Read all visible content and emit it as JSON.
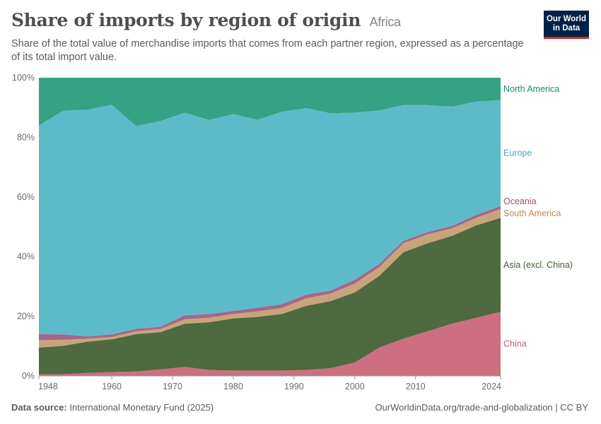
{
  "header": {
    "title": "Share of imports by region of origin",
    "entity": "Africa",
    "subtitle": "Share of the total value of merchandise imports that comes from each partner region, expressed as a percentage of its total import value.",
    "logo_line1": "Our World",
    "logo_line2": "in Data"
  },
  "footer": {
    "source_label": "Data source:",
    "source_text": "International Monetary Fund (2025)",
    "url_text": "OurWorldinData.org/trade-and-globalization | CC BY"
  },
  "colors": {
    "China": "#cd6f80",
    "Asia (excl. China)": "#4e6a40",
    "South America": "#c9a37b",
    "Oceania": "#a4678a",
    "Europe": "#5dbbc9",
    "North America": "#36a183"
  },
  "chart_data": {
    "type": "area",
    "stacked": true,
    "ylim": [
      0,
      100
    ],
    "xlim": [
      1948,
      2024
    ],
    "y_ticks": [
      "0%",
      "20%",
      "40%",
      "60%",
      "80%",
      "100%"
    ],
    "y_tick_values": [
      0,
      20,
      40,
      60,
      80,
      100
    ],
    "x_ticks": [
      "1948",
      "1960",
      "1970",
      "1980",
      "1990",
      "2000",
      "2010",
      "2024"
    ],
    "x_tick_values": [
      1948,
      1960,
      1970,
      1980,
      1990,
      2000,
      2010,
      2024
    ],
    "legend_placement": "right",
    "grid": "horizontal dotted",
    "x": [
      1948,
      1952,
      1956,
      1960,
      1964,
      1968,
      1972,
      1976,
      1980,
      1984,
      1988,
      1992,
      1996,
      2000,
      2004,
      2008,
      2012,
      2016,
      2020,
      2024
    ],
    "series": [
      {
        "name": "China",
        "values": [
          0.5,
          0.6,
          1.0,
          1.3,
          1.5,
          2.2,
          3.0,
          2.0,
          1.8,
          1.8,
          1.8,
          2.0,
          2.6,
          4.5,
          9.5,
          12.5,
          15.0,
          17.5,
          19.5,
          21.5
        ]
      },
      {
        "name": "Asia (excl. China)",
        "values": [
          9.0,
          9.5,
          10.5,
          11.0,
          12.5,
          12.5,
          14.5,
          16.0,
          17.5,
          18.0,
          19.0,
          21.5,
          22.5,
          23.5,
          24.0,
          29.0,
          29.5,
          29.5,
          31.0,
          31.5
        ]
      },
      {
        "name": "South America",
        "values": [
          2.5,
          2.0,
          1.0,
          0.8,
          1.0,
          1.0,
          1.5,
          1.5,
          1.5,
          1.8,
          2.0,
          2.5,
          2.5,
          3.0,
          3.0,
          3.0,
          3.0,
          2.5,
          2.5,
          3.0
        ]
      },
      {
        "name": "Oceania",
        "values": [
          2.0,
          1.8,
          0.8,
          0.8,
          0.8,
          0.8,
          1.3,
          1.3,
          1.0,
          1.3,
          1.3,
          1.3,
          1.0,
          1.3,
          1.0,
          0.8,
          0.8,
          0.8,
          1.0,
          1.0
        ]
      },
      {
        "name": "Europe",
        "values": [
          70.0,
          75.0,
          76.0,
          77.0,
          68.0,
          69.0,
          68.0,
          65.0,
          66.0,
          63.0,
          64.5,
          62.5,
          59.5,
          56.0,
          51.5,
          45.5,
          42.5,
          40.0,
          38.0,
          35.5
        ]
      },
      {
        "name": "North America",
        "values": [
          16.0,
          11.1,
          10.7,
          9.1,
          16.2,
          14.5,
          11.7,
          14.2,
          12.2,
          14.1,
          11.4,
          10.2,
          11.9,
          11.7,
          11.0,
          9.2,
          9.2,
          9.7,
          8.0,
          7.5
        ]
      }
    ]
  }
}
